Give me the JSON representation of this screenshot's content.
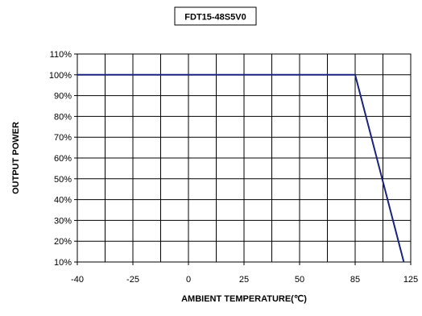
{
  "chart_data": {
    "type": "line",
    "title": "FDT15-48S5V0",
    "xlabel": "AMBIENT TEMPERATURE(℃)",
    "ylabel": "OUTPUT POWER",
    "xlim": [
      -40,
      125
    ],
    "ylim": [
      10,
      110
    ],
    "x_ticks": [
      -40,
      -25,
      0,
      25,
      50,
      85,
      125
    ],
    "x_tick_labels": [
      "-40",
      "-25",
      "0",
      "25",
      "50",
      "85",
      "125"
    ],
    "x_grid": [
      -40,
      -25,
      0,
      25,
      50,
      85,
      125
    ],
    "y_ticks": [
      10,
      20,
      30,
      40,
      50,
      60,
      70,
      80,
      90,
      100,
      110
    ],
    "y_tick_labels": [
      "10%",
      "20%",
      "30%",
      "40%",
      "50%",
      "60%",
      "70%",
      "80%",
      "90%",
      "100%",
      "110%"
    ],
    "grid": true,
    "series": [
      {
        "x": [
          -40,
          85,
          120
        ],
        "y": [
          100,
          100,
          10
        ],
        "color": "#1a237e"
      }
    ]
  }
}
